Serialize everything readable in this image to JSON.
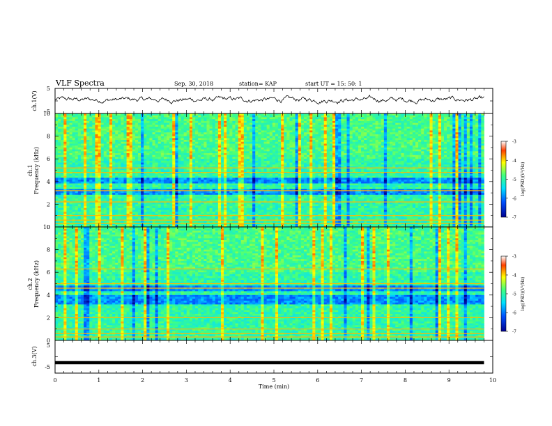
{
  "header": {
    "title": "VLF Spectra",
    "date": "Sep. 30, 2018",
    "station": "station= KAP",
    "start": "start  UT  =   15: 50: 1"
  },
  "chart_data": [
    {
      "type": "line",
      "name": "ch1-waveform",
      "ylabel": "ch.1(V)",
      "ylim": [
        -5,
        5
      ],
      "yticks": [
        "5",
        "-5"
      ],
      "xlim": [
        0,
        10
      ],
      "x_extent": [
        0,
        9.8
      ],
      "approx_level_v": 0.5,
      "approx_fluctuation_v": 2.5
    },
    {
      "type": "heatmap",
      "name": "ch1-spectrogram",
      "ylabel": "ch.1\nFrequency  (kHz)",
      "ylim": [
        0,
        10
      ],
      "yticks": [
        "0",
        "2",
        "4",
        "6",
        "8",
        "10"
      ],
      "xlim": [
        0,
        10
      ],
      "x_extent": [
        0,
        9.8
      ],
      "colorbar": {
        "label": "log(PSD)(V²/Hz)",
        "range": [
          -7,
          -3
        ],
        "ticks": [
          "-3",
          "-4",
          "-5",
          "-6",
          "-7"
        ]
      },
      "bands_khz": [
        0.3,
        0.6,
        1.0,
        2.2,
        3.2,
        4.8,
        5.2
      ],
      "quiet_bands_khz": [
        [
          2.8,
          3.4
        ],
        [
          3.9,
          4.3
        ]
      ]
    },
    {
      "type": "heatmap",
      "name": "ch2-spectrogram",
      "ylabel": "ch.2\nFrequency  (kHz)",
      "ylim": [
        0,
        10
      ],
      "yticks": [
        "0",
        "2",
        "4",
        "6",
        "8",
        "10"
      ],
      "xlim": [
        0,
        10
      ],
      "x_extent": [
        0,
        9.8
      ],
      "colorbar": {
        "label": "log(PSD)(V²/Hz)",
        "range": [
          -7,
          -3
        ],
        "ticks": [
          "-3",
          "-4",
          "-5",
          "-6",
          "-7"
        ]
      },
      "bands_khz": [
        0.3,
        0.6,
        1.0,
        2.0,
        4.6,
        5.0,
        6.3
      ],
      "quiet_bands_khz": [
        [
          3.2,
          4.0
        ],
        [
          4.4,
          4.8
        ]
      ]
    },
    {
      "type": "line",
      "name": "ch3-waveform",
      "ylabel": "ch.3(V)",
      "ylim": [
        -5,
        5
      ],
      "yticks": [
        "5",
        "-5"
      ],
      "xlim": [
        0,
        10
      ],
      "x_extent": [
        0,
        9.8
      ],
      "constant_v": -1.8,
      "xlabel": "Time  (min)",
      "xticks": [
        "0",
        "1",
        "2",
        "3",
        "4",
        "5",
        "6",
        "7",
        "8",
        "9",
        "10"
      ]
    }
  ]
}
